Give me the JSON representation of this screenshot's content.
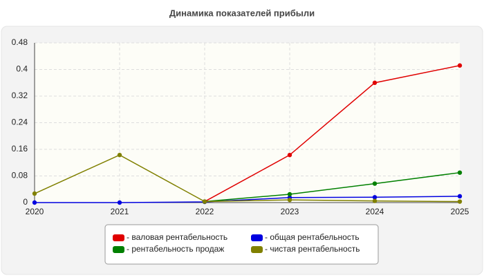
{
  "chart_data": {
    "type": "line",
    "title": "Динамика показателей прибыли",
    "categories": [
      "2020",
      "2021",
      "2022",
      "2023",
      "2024",
      "2025"
    ],
    "series": [
      {
        "name": "- валовая рентабельность",
        "color": "#e00000",
        "values": [
          null,
          null,
          0.003,
          0.143,
          0.36,
          0.412
        ]
      },
      {
        "name": "- общая рентабельность",
        "color": "#0000e0",
        "values": [
          0,
          0,
          0.002,
          0.015,
          0.016,
          0.019
        ]
      },
      {
        "name": "- рентабельность продаж",
        "color": "#008000",
        "values": [
          null,
          null,
          0.003,
          0.025,
          0.057,
          0.09
        ]
      },
      {
        "name": "- чистая рентабельность",
        "color": "#808000",
        "values": [
          0.027,
          0.143,
          0.003,
          0.008,
          0.005,
          0.003
        ]
      }
    ],
    "ylim": [
      0,
      0.48
    ],
    "yticks": [
      0,
      0.08,
      0.16,
      0.24,
      0.32,
      0.4,
      0.48
    ],
    "grid": true,
    "legend": "bottom"
  }
}
